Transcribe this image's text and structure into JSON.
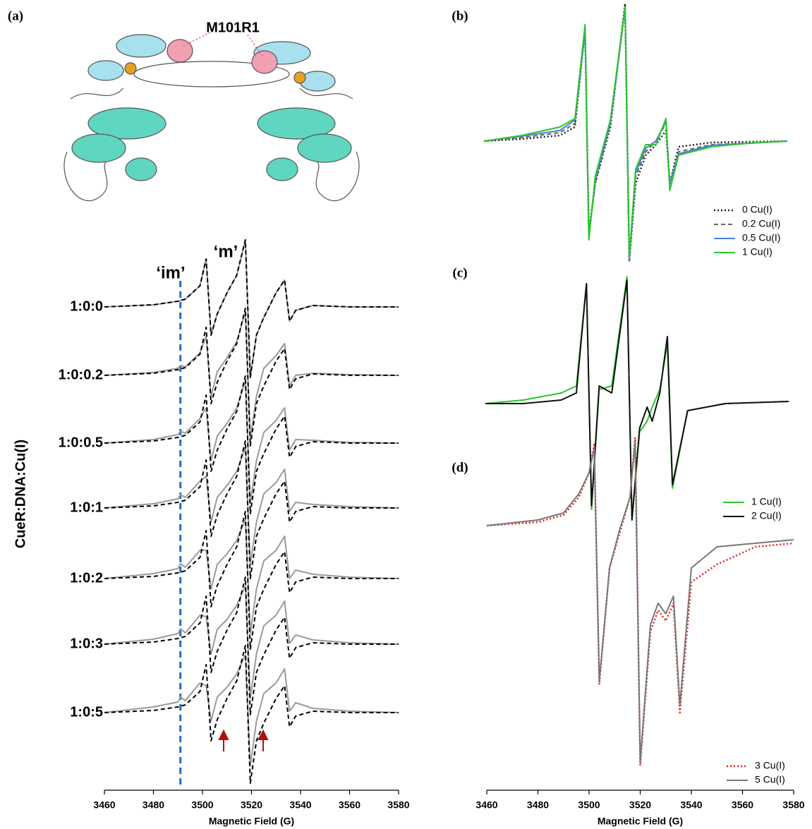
{
  "chart_data": [
    {
      "type": "line",
      "panel_label": "(a)",
      "annotations": {
        "structure_label": "M101R1",
        "mobile_label": "‘m’",
        "immobile_label": "‘im’",
        "marker_x": 3491,
        "marker_color": "#1f6fc4"
      },
      "y_label": "CueR:DNA:Cu(I)",
      "x_label": "Magnetic Field (G)",
      "xlim": [
        3460,
        3580
      ],
      "xticks": [
        3460,
        3480,
        3500,
        3520,
        3540,
        3560,
        3580
      ],
      "x": [
        3460,
        3480,
        3490,
        3491,
        3493,
        3499,
        3501.5,
        3503.5,
        3506,
        3510,
        3514,
        3517.5,
        3519.5,
        3522,
        3525,
        3530,
        3533.5,
        3535.5,
        3538,
        3545,
        3560,
        3580
      ],
      "rows": [
        {
          "label": "1:0:0",
          "series": [
            {
              "color": "#9a9a9a",
              "line_style": "solid",
              "values": [
                0,
                3,
                8,
                9,
                11,
                30,
                68,
                -40,
                -10,
                20,
                45,
                95,
                -100,
                -40,
                -15,
                20,
                38,
                -20,
                -5,
                2,
                0,
                0
              ]
            },
            {
              "color": "#000000",
              "line_style": "dashed",
              "values": [
                0,
                3,
                8,
                9,
                11,
                30,
                68,
                -40,
                -10,
                20,
                45,
                95,
                -100,
                -40,
                -15,
                20,
                38,
                -20,
                -5,
                2,
                0,
                0
              ]
            }
          ]
        },
        {
          "label": "1:0:0.2",
          "series": [
            {
              "color": "#9a9a9a",
              "line_style": "solid",
              "values": [
                0,
                4,
                10,
                14,
                12,
                32,
                55,
                -30,
                5,
                25,
                48,
                90,
                -90,
                -30,
                10,
                28,
                45,
                -15,
                0,
                3,
                1,
                0
              ]
            },
            {
              "color": "#000000",
              "line_style": "dashed",
              "values": [
                0,
                3,
                8,
                9,
                11,
                30,
                68,
                -40,
                -10,
                20,
                45,
                95,
                -100,
                -40,
                -15,
                20,
                38,
                -20,
                -5,
                2,
                0,
                0
              ]
            }
          ]
        },
        {
          "label": "1:0:0.5",
          "series": [
            {
              "color": "#9a9a9a",
              "line_style": "solid",
              "values": [
                0,
                5,
                12,
                17,
                14,
                35,
                50,
                -25,
                10,
                28,
                50,
                88,
                -85,
                -25,
                15,
                32,
                50,
                -10,
                5,
                4,
                1,
                0
              ]
            },
            {
              "color": "#000000",
              "line_style": "dashed",
              "values": [
                0,
                3,
                8,
                9,
                11,
                30,
                68,
                -40,
                -10,
                20,
                45,
                95,
                -100,
                -40,
                -15,
                20,
                38,
                -20,
                -5,
                2,
                0,
                0
              ]
            }
          ]
        },
        {
          "label": "1:0:1",
          "series": [
            {
              "color": "#9a9a9a",
              "line_style": "solid",
              "values": [
                0,
                6,
                13,
                19,
                15,
                38,
                45,
                -20,
                15,
                32,
                52,
                86,
                -80,
                -20,
                20,
                36,
                55,
                -5,
                8,
                5,
                2,
                0
              ]
            },
            {
              "color": "#000000",
              "line_style": "dashed",
              "values": [
                0,
                3,
                8,
                9,
                11,
                30,
                68,
                -40,
                -10,
                20,
                45,
                95,
                -100,
                -40,
                -15,
                20,
                38,
                -20,
                -5,
                2,
                0,
                0
              ]
            }
          ]
        },
        {
          "label": "1:0:2",
          "series": [
            {
              "color": "#9a9a9a",
              "line_style": "solid",
              "values": [
                0,
                7,
                14,
                21,
                16,
                40,
                40,
                -15,
                20,
                35,
                54,
                84,
                -78,
                -15,
                25,
                40,
                60,
                0,
                12,
                6,
                2,
                0
              ]
            },
            {
              "color": "#000000",
              "line_style": "dashed",
              "values": [
                0,
                3,
                8,
                9,
                11,
                30,
                68,
                -40,
                -10,
                20,
                45,
                95,
                -100,
                -40,
                -15,
                20,
                38,
                -20,
                -5,
                2,
                0,
                0
              ]
            }
          ]
        },
        {
          "label": "1:0:3",
          "series": [
            {
              "color": "#9a9a9a",
              "line_style": "solid",
              "values": [
                0,
                7,
                15,
                22,
                16,
                41,
                39,
                -14,
                21,
                35,
                55,
                83,
                -77,
                -14,
                26,
                41,
                61,
                1,
                13,
                6,
                2,
                0
              ]
            },
            {
              "color": "#000000",
              "line_style": "dashed",
              "values": [
                0,
                3,
                8,
                9,
                11,
                30,
                68,
                -40,
                -10,
                20,
                45,
                95,
                -100,
                -40,
                -15,
                20,
                38,
                -20,
                -5,
                2,
                0,
                0
              ]
            }
          ]
        },
        {
          "label": "1:0:5",
          "series": [
            {
              "color": "#9a9a9a",
              "line_style": "solid",
              "values": [
                0,
                8,
                15,
                22,
                17,
                42,
                38,
                -12,
                22,
                36,
                55,
                82,
                -76,
                -12,
                27,
                42,
                62,
                2,
                14,
                6,
                2,
                0
              ]
            },
            {
              "color": "#000000",
              "line_style": "dashed",
              "values": [
                0,
                3,
                8,
                9,
                11,
                30,
                68,
                -40,
                -10,
                20,
                45,
                95,
                -100,
                -40,
                -15,
                20,
                38,
                -20,
                -5,
                2,
                0,
                0
              ]
            }
          ]
        }
      ]
    },
    {
      "type": "line",
      "panel_label": "(b)",
      "xlim": [
        3460,
        3580
      ],
      "x": [
        3460,
        3475,
        3490,
        3496,
        3500,
        3501.5,
        3504,
        3510,
        3515.8,
        3517.5,
        3520,
        3524,
        3528,
        3532,
        3533.5,
        3537,
        3550,
        3565,
        3580
      ],
      "series": [
        {
          "name": "0 Cu(I)",
          "color": "#222222",
          "line_style": "dotted",
          "values": [
            0,
            3,
            8,
            20,
            160,
            -130,
            -60,
            20,
            195,
            -170,
            -60,
            -20,
            -5,
            15,
            -60,
            -8,
            -2,
            -1,
            0
          ]
        },
        {
          "name": "0.2 Cu(I)",
          "color": "#666666",
          "line_style": "dashed",
          "values": [
            0,
            5,
            12,
            25,
            160,
            -135,
            -60,
            25,
            190,
            -170,
            -50,
            -15,
            0,
            25,
            -60,
            -15,
            -5,
            -3,
            0
          ]
        },
        {
          "name": "0.5 Cu(I)",
          "color": "#4a7fd4",
          "line_style": "solid",
          "values": [
            0,
            7,
            15,
            30,
            155,
            -135,
            -55,
            25,
            188,
            -168,
            -45,
            -10,
            0,
            28,
            -60,
            -18,
            -6,
            -3,
            0
          ]
        },
        {
          "name": "1 Cu(I)",
          "color": "#2cc52c",
          "line_style": "solid",
          "values": [
            0,
            8,
            20,
            32,
            165,
            -140,
            -50,
            30,
            190,
            -165,
            -40,
            -5,
            -5,
            32,
            -70,
            -20,
            -8,
            -3,
            0
          ]
        }
      ]
    },
    {
      "type": "line",
      "panel_label": "(c)",
      "xlim": [
        3460,
        3580
      ],
      "x": [
        3460,
        3475,
        3490,
        3496,
        3500,
        3502,
        3505,
        3510,
        3516,
        3518,
        3521,
        3524,
        3526,
        3529,
        3532,
        3534,
        3540,
        3555,
        3580
      ],
      "series": [
        {
          "name": "1 Cu(I)",
          "color": "#2cc52c",
          "line_style": "solid",
          "values": [
            0,
            5,
            15,
            25,
            170,
            -150,
            20,
            25,
            180,
            -165,
            -40,
            -25,
            -5,
            20,
            85,
            -120,
            -10,
            0,
            3
          ]
        },
        {
          "name": "2 Cu(I)",
          "color": "#111111",
          "line_style": "solid",
          "values": [
            0,
            0,
            5,
            15,
            170,
            -145,
            25,
            15,
            175,
            -165,
            -35,
            -5,
            -25,
            15,
            95,
            -115,
            -10,
            0,
            3
          ]
        }
      ]
    },
    {
      "type": "line",
      "panel_label": "(d)",
      "x_label": "Magnetic Field (G)",
      "xlim": [
        3460,
        3580
      ],
      "xticks": [
        3460,
        3480,
        3500,
        3520,
        3540,
        3560,
        3580
      ],
      "x": [
        3460,
        3480,
        3490,
        3496,
        3500,
        3502,
        3504,
        3508,
        3512,
        3516,
        3518,
        3520,
        3524,
        3527,
        3530,
        3533,
        3535.5,
        3540,
        3550,
        3565,
        3580
      ],
      "series": [
        {
          "name": "3 Cu(I)",
          "color": "#e02020",
          "line_style": "dotted",
          "values": [
            0,
            5,
            15,
            40,
            75,
            115,
            -225,
            -60,
            -10,
            40,
            125,
            -340,
            -150,
            -120,
            -135,
            -110,
            -265,
            -80,
            -55,
            -30,
            -25
          ]
        },
        {
          "name": "5 Cu(I)",
          "color": "#777777",
          "line_style": "solid",
          "values": [
            0,
            8,
            18,
            45,
            75,
            110,
            -220,
            -60,
            -5,
            40,
            120,
            -335,
            -140,
            -110,
            -125,
            -100,
            -255,
            -60,
            -30,
            -25,
            -20
          ]
        }
      ]
    }
  ]
}
